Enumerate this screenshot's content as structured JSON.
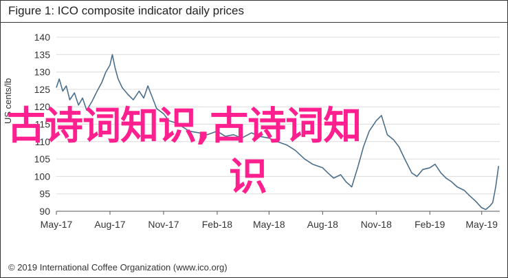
{
  "title": "Figure 1: ICO composite indicator daily prices",
  "copyright": "© 2019 International Coffee Organization (www.ico.org)",
  "watermark_lines": [
    "古诗词知识,古诗词知",
    "识"
  ],
  "colors": {
    "line": "#4a6e8a",
    "grid": "#dcdcdc",
    "axis": "#555555",
    "watermark": "#ff1f8e"
  },
  "chart_data": {
    "type": "line",
    "ylabel": "US cents/lb",
    "ylim": [
      90,
      140
    ],
    "yticks": [
      90,
      95,
      100,
      105,
      110,
      115,
      120,
      125,
      130,
      135,
      140
    ],
    "xlim": [
      "2017-05-01",
      "2019-06-01"
    ],
    "xticks": [
      {
        "label": "May-17",
        "date": "2017-05-01"
      },
      {
        "label": "Aug-17",
        "date": "2017-08-01"
      },
      {
        "label": "Nov-17",
        "date": "2017-11-01"
      },
      {
        "label": "Feb-18",
        "date": "2018-02-01"
      },
      {
        "label": "May-18",
        "date": "2018-05-01"
      },
      {
        "label": "Aug-18",
        "date": "2018-08-01"
      },
      {
        "label": "Nov-18",
        "date": "2018-11-01"
      },
      {
        "label": "Feb-19",
        "date": "2019-02-01"
      },
      {
        "label": "May-19",
        "date": "2019-05-01"
      }
    ],
    "grid": true,
    "series": [
      {
        "name": "",
        "points": [
          [
            "2017-05-01",
            125.5
          ],
          [
            "2017-05-06",
            128.0
          ],
          [
            "2017-05-12",
            124.5
          ],
          [
            "2017-05-18",
            126.0
          ],
          [
            "2017-05-24",
            122.0
          ],
          [
            "2017-06-01",
            124.0
          ],
          [
            "2017-06-08",
            120.5
          ],
          [
            "2017-06-15",
            122.5
          ],
          [
            "2017-06-22",
            119.0
          ],
          [
            "2017-07-01",
            121.5
          ],
          [
            "2017-07-10",
            124.5
          ],
          [
            "2017-07-18",
            127.0
          ],
          [
            "2017-07-25",
            130.0
          ],
          [
            "2017-08-01",
            132.0
          ],
          [
            "2017-08-05",
            135.0
          ],
          [
            "2017-08-10",
            131.0
          ],
          [
            "2017-08-15",
            128.0
          ],
          [
            "2017-08-22",
            125.5
          ],
          [
            "2017-09-01",
            123.5
          ],
          [
            "2017-09-10",
            122.0
          ],
          [
            "2017-09-20",
            124.5
          ],
          [
            "2017-09-28",
            122.5
          ],
          [
            "2017-10-05",
            126.0
          ],
          [
            "2017-10-12",
            123.0
          ],
          [
            "2017-10-20",
            119.5
          ],
          [
            "2017-11-01",
            118.0
          ],
          [
            "2017-11-10",
            116.0
          ],
          [
            "2017-11-20",
            115.5
          ],
          [
            "2017-12-01",
            114.5
          ],
          [
            "2017-12-15",
            113.0
          ],
          [
            "2018-01-01",
            112.5
          ],
          [
            "2018-01-15",
            112.0
          ],
          [
            "2018-02-01",
            113.0
          ],
          [
            "2018-02-15",
            111.5
          ],
          [
            "2018-03-01",
            112.0
          ],
          [
            "2018-03-15",
            111.0
          ],
          [
            "2018-04-01",
            112.5
          ],
          [
            "2018-04-15",
            111.5
          ],
          [
            "2018-05-01",
            111.0
          ],
          [
            "2018-05-15",
            110.0
          ],
          [
            "2018-06-01",
            109.0
          ],
          [
            "2018-06-15",
            107.5
          ],
          [
            "2018-07-01",
            105.0
          ],
          [
            "2018-07-15",
            103.5
          ],
          [
            "2018-08-01",
            102.5
          ],
          [
            "2018-08-10",
            101.0
          ],
          [
            "2018-08-20",
            99.5
          ],
          [
            "2018-09-01",
            100.5
          ],
          [
            "2018-09-10",
            98.5
          ],
          [
            "2018-09-20",
            97.0
          ],
          [
            "2018-10-01",
            103.0
          ],
          [
            "2018-10-10",
            108.5
          ],
          [
            "2018-10-20",
            113.0
          ],
          [
            "2018-11-01",
            116.0
          ],
          [
            "2018-11-10",
            117.5
          ],
          [
            "2018-11-20",
            112.0
          ],
          [
            "2018-12-01",
            110.5
          ],
          [
            "2018-12-10",
            108.5
          ],
          [
            "2018-12-20",
            105.0
          ],
          [
            "2019-01-01",
            101.0
          ],
          [
            "2019-01-10",
            100.0
          ],
          [
            "2019-01-20",
            102.0
          ],
          [
            "2019-02-01",
            102.5
          ],
          [
            "2019-02-10",
            103.5
          ],
          [
            "2019-02-20",
            101.0
          ],
          [
            "2019-03-01",
            99.5
          ],
          [
            "2019-03-10",
            98.5
          ],
          [
            "2019-03-20",
            97.0
          ],
          [
            "2019-04-01",
            96.0
          ],
          [
            "2019-04-10",
            94.5
          ],
          [
            "2019-04-20",
            93.0
          ],
          [
            "2019-05-01",
            91.0
          ],
          [
            "2019-05-08",
            90.5
          ],
          [
            "2019-05-15",
            91.5
          ],
          [
            "2019-05-20",
            92.5
          ],
          [
            "2019-05-25",
            97.0
          ],
          [
            "2019-05-30",
            103.0
          ]
        ]
      }
    ]
  }
}
